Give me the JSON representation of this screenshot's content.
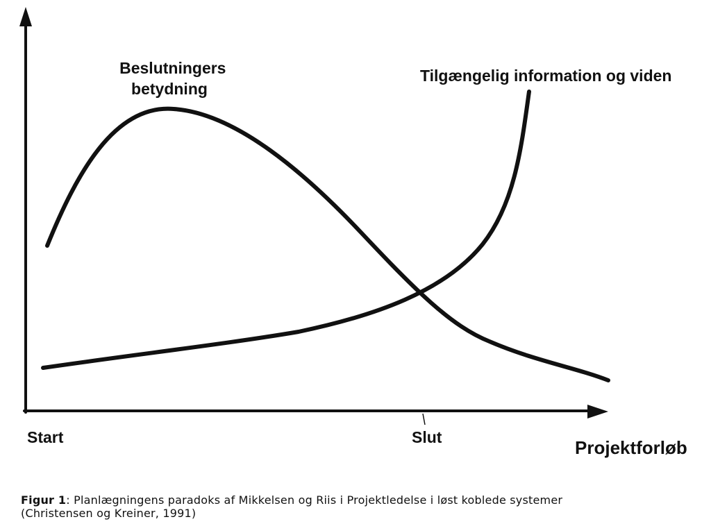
{
  "diagram": {
    "curves": {
      "decision_importance": "Beslutningers betydning",
      "decision_importance_lines": [
        "Beslutningers",
        "betydning"
      ],
      "available_information": "Tilgængelig information og viden"
    },
    "axes": {
      "x_start": "Start",
      "x_end": "Slut",
      "x_title": "Projektforløb"
    },
    "line_color": "#111111"
  },
  "caption": {
    "label": "Figur 1",
    "separator": ":",
    "text": " Planlægningens paradoks af Mikkelsen og Riis i Projektledelse i løst koblede systemer",
    "source": "(Christensen og Kreiner, 1991)"
  }
}
